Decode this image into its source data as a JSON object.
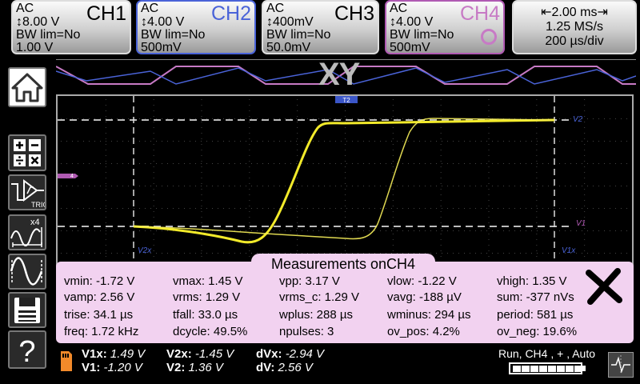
{
  "channels": [
    {
      "coupling": "AC",
      "scale": "↕8.00 V",
      "bw": "BW lim=No",
      "probe": "1.00 V",
      "name": "CH1"
    },
    {
      "coupling": "AC",
      "scale": "↕4.00 V",
      "bw": "BW lim=No",
      "probe": "500mV",
      "name": "CH2",
      "color": "#4a63d8"
    },
    {
      "coupling": "AC",
      "scale": "↕400mV",
      "bw": "BW lim=No",
      "probe": "50.0mV",
      "name": "CH3"
    },
    {
      "coupling": "AC",
      "scale": "↕4.00 V",
      "bw": "BW lim=No",
      "probe": "500mV",
      "name": "CH4",
      "color": "#c77ac5"
    }
  ],
  "timebase": {
    "delay": "⇤2.00 ms⇥",
    "rate": "1.25 MS/s",
    "div": "200 µs/div"
  },
  "overview_label": "XY",
  "markers": {
    "t2": "T2",
    "ch4": "4",
    "v2": "V2",
    "v1": "V1",
    "v2x": "V2x",
    "v1x": "V1x"
  },
  "icons": [
    "home-icon",
    "math-icon",
    "trigger-icon",
    "measure-icon",
    "waveform-icon",
    "save-icon",
    "help-icon",
    "close-icon",
    "sd-card-icon",
    "battery-icon"
  ],
  "trigger_label": "TRIG",
  "measure_badge": "x4",
  "help_label": "?",
  "measurements": {
    "title": "Measurements onCH4",
    "items": [
      [
        "vmin: -1.72 V",
        "vmax: 1.45 V",
        "vpp: 3.17 V",
        "vlow: -1.22 V",
        "vhigh: 1.35 V"
      ],
      [
        "vamp: 2.56 V",
        "vrms: 1.29 V",
        "vrms_c: 1.29 V",
        "vavg: -188 µV",
        "sum: -377 nVs"
      ],
      [
        "trise: 34.1 µs",
        "tfall: 33.0 µs",
        "wplus: 288 µs",
        "wminus: 294 µs",
        "period: 581 µs"
      ],
      [
        "freq: 1.72 kHz",
        "dcycle: 49.5%",
        "npulses: 3",
        "ov_pos: 4.2%",
        "ov_neg: 19.6%"
      ]
    ]
  },
  "cursors": {
    "v1x_label": "V1x:",
    "v1x_value": "1.49 V",
    "v2x_label": "V2x:",
    "v2x_value": "-1.45 V",
    "dvx_label": "dVx:",
    "dvx_value": "-2.94 V",
    "v1_label": "V1:",
    "v1_value": "-1.20 V",
    "v2_label": "V2:",
    "v2_value": "1.36 V",
    "dv_label": "dV:",
    "dv_value": "2.56 V"
  },
  "status": "Run, CH4 , + , Auto",
  "battery_cells": 8,
  "colors": {
    "trace": "#f2ea2a",
    "ch2": "#4a63d8",
    "ch4": "#c77ac5",
    "panel": "#f2d2f0"
  }
}
